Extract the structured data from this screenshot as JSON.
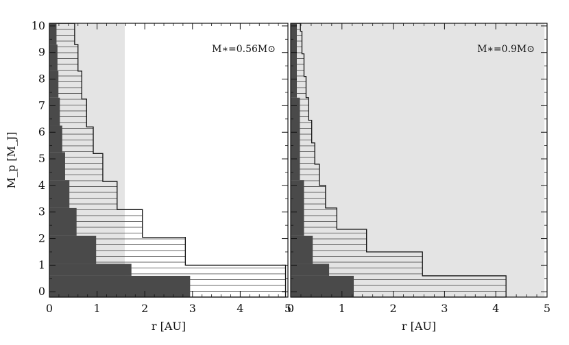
{
  "chart_data": [
    {
      "type": "area",
      "panel": "left",
      "annotation": "M∗=0.56M⊙",
      "xlabel": "r [AU]",
      "ylabel": "M_p [M_J]",
      "xlim": [
        0,
        5
      ],
      "ylim": [
        -0.2,
        10.1
      ],
      "x_ticks": [
        0,
        1,
        2,
        3,
        4,
        5
      ],
      "y_ticks": [
        0,
        1,
        2,
        3,
        4,
        5,
        6,
        7,
        8,
        9,
        10
      ],
      "shaded_region_x": [
        0,
        1.58
      ],
      "series": [
        {
          "style": "hatched",
          "steps": [
            {
              "y0": -0.2,
              "y1": 1.0,
              "x": 4.95
            },
            {
              "y0": 1.0,
              "y1": 2.05,
              "x": 2.85
            },
            {
              "y0": 2.05,
              "y1": 3.1,
              "x": 1.95
            },
            {
              "y0": 3.1,
              "y1": 4.15,
              "x": 1.42
            },
            {
              "y0": 4.15,
              "y1": 5.2,
              "x": 1.12
            },
            {
              "y0": 5.2,
              "y1": 6.2,
              "x": 0.92
            },
            {
              "y0": 6.2,
              "y1": 7.25,
              "x": 0.78
            },
            {
              "y0": 7.25,
              "y1": 8.3,
              "x": 0.68
            },
            {
              "y0": 8.3,
              "y1": 9.3,
              "x": 0.6
            },
            {
              "y0": 9.3,
              "y1": 10.1,
              "x": 0.53
            }
          ]
        },
        {
          "style": "solid",
          "steps": [
            {
              "y0": -0.2,
              "y1": 0.6,
              "x": 2.95
            },
            {
              "y0": 0.6,
              "y1": 1.05,
              "x": 1.72
            },
            {
              "y0": 1.05,
              "y1": 2.1,
              "x": 0.98
            },
            {
              "y0": 2.1,
              "y1": 3.15,
              "x": 0.57
            },
            {
              "y0": 3.15,
              "y1": 4.2,
              "x": 0.42
            },
            {
              "y0": 4.2,
              "y1": 5.25,
              "x": 0.33
            },
            {
              "y0": 5.25,
              "y1": 6.25,
              "x": 0.27
            },
            {
              "y0": 6.25,
              "y1": 7.3,
              "x": 0.22
            },
            {
              "y0": 7.3,
              "y1": 8.3,
              "x": 0.19
            },
            {
              "y0": 8.3,
              "y1": 9.3,
              "x": 0.17
            },
            {
              "y0": 9.3,
              "y1": 10.1,
              "x": 0.15
            }
          ]
        }
      ]
    },
    {
      "type": "area",
      "panel": "right",
      "annotation": "M∗=0.9M⊙",
      "xlabel": "r [AU]",
      "xlim": [
        0,
        5
      ],
      "ylim": [
        -0.2,
        10.1
      ],
      "x_ticks": [
        0,
        1,
        2,
        3,
        4,
        5
      ],
      "y_ticks": [
        0,
        1,
        2,
        3,
        4,
        5,
        6,
        7,
        8,
        9,
        10
      ],
      "shaded_region_x": [
        0,
        4.95
      ],
      "series": [
        {
          "style": "hatched",
          "steps": [
            {
              "y0": -0.2,
              "y1": 0.6,
              "x": 4.2
            },
            {
              "y0": 0.6,
              "y1": 1.5,
              "x": 2.57
            },
            {
              "y0": 1.5,
              "y1": 2.35,
              "x": 1.48
            },
            {
              "y0": 2.35,
              "y1": 3.15,
              "x": 0.9
            },
            {
              "y0": 3.15,
              "y1": 4.0,
              "x": 0.68
            },
            {
              "y0": 4.0,
              "y1": 4.8,
              "x": 0.56
            },
            {
              "y0": 4.8,
              "y1": 5.6,
              "x": 0.47
            },
            {
              "y0": 5.6,
              "y1": 6.45,
              "x": 0.41
            },
            {
              "y0": 6.45,
              "y1": 7.3,
              "x": 0.35
            },
            {
              "y0": 7.3,
              "y1": 8.1,
              "x": 0.3
            },
            {
              "y0": 8.1,
              "y1": 8.95,
              "x": 0.26
            },
            {
              "y0": 8.95,
              "y1": 9.8,
              "x": 0.22
            },
            {
              "y0": 9.8,
              "y1": 10.1,
              "x": 0.19
            }
          ]
        },
        {
          "style": "solid",
          "steps": [
            {
              "y0": -0.2,
              "y1": 0.6,
              "x": 1.23
            },
            {
              "y0": 0.6,
              "y1": 1.05,
              "x": 0.75
            },
            {
              "y0": 1.05,
              "y1": 2.1,
              "x": 0.43
            },
            {
              "y0": 2.1,
              "y1": 4.2,
              "x": 0.26
            },
            {
              "y0": 4.2,
              "y1": 7.3,
              "x": 0.18
            },
            {
              "y0": 7.3,
              "y1": 10.1,
              "x": 0.12
            }
          ]
        }
      ]
    }
  ],
  "colors": {
    "shade": "#e4e4e4",
    "solid": "#4a4a4a",
    "hatch": "#555555",
    "outline": "#111111",
    "axis": "#111111"
  }
}
